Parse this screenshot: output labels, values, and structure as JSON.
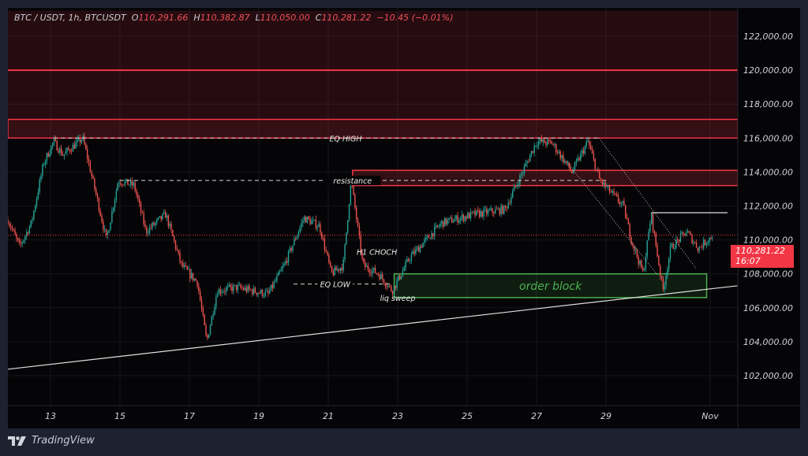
{
  "header": {
    "symbol": "BTC / USDT, 1h, BTCUSDT",
    "open_label": "O",
    "open": "110,291.66",
    "high_label": "H",
    "high": "110,382.87",
    "low_label": "L",
    "low": "110,050.00",
    "close_label": "C",
    "close": "110,281.22",
    "change": "−10.45 (−0.01%)"
  },
  "price_label": {
    "price": "110,281.22",
    "countdown": "16:07"
  },
  "footer": {
    "brand": "TradingView",
    "logo_icon": "tradingview-logo-icon"
  },
  "colors": {
    "up": "#26a69a",
    "down": "#ef5350",
    "zone_red": "#f23645",
    "order_block": "#4caf50",
    "background": "#050507"
  },
  "chart_data": {
    "type": "candlestick",
    "timeframe": "1h",
    "ylim": [
      100500,
      123500
    ],
    "yticks": [
      {
        "value": 122000,
        "label": "122,000.00"
      },
      {
        "value": 120000,
        "label": "120,000.00"
      },
      {
        "value": 118000,
        "label": "118,000.00"
      },
      {
        "value": 116000,
        "label": "116,000.00"
      },
      {
        "value": 114000,
        "label": "114,000.00"
      },
      {
        "value": 112000,
        "label": "112,000.00"
      },
      {
        "value": 110000,
        "label": "110,000.00"
      },
      {
        "value": 108000,
        "label": "108,000.00"
      },
      {
        "value": 106000,
        "label": "106,000.00"
      },
      {
        "value": 104000,
        "label": "104,000.00"
      },
      {
        "value": 102000,
        "label": "102,000.00"
      }
    ],
    "xticks": [
      {
        "day": 13,
        "label": "13"
      },
      {
        "day": 15,
        "label": "15"
      },
      {
        "day": 17,
        "label": "17"
      },
      {
        "day": 19,
        "label": "19"
      },
      {
        "day": 21,
        "label": "21"
      },
      {
        "day": 23,
        "label": "23"
      },
      {
        "day": 25,
        "label": "25"
      },
      {
        "day": 27,
        "label": "27"
      },
      {
        "day": 29,
        "label": "29"
      },
      {
        "day": 32,
        "label": "Nov"
      }
    ],
    "price_path": [
      [
        11.77,
        111200
      ],
      [
        12.11,
        109600
      ],
      [
        12.45,
        111000
      ],
      [
        12.8,
        114500
      ],
      [
        13.09,
        115800
      ],
      [
        13.36,
        115000
      ],
      [
        13.93,
        116000
      ],
      [
        14.39,
        112000
      ],
      [
        14.61,
        110000
      ],
      [
        14.95,
        113500
      ],
      [
        15.41,
        113200
      ],
      [
        15.75,
        110500
      ],
      [
        16.32,
        111500
      ],
      [
        16.77,
        108500
      ],
      [
        17.23,
        107500
      ],
      [
        17.5,
        104000
      ],
      [
        17.8,
        107000
      ],
      [
        18.36,
        107200
      ],
      [
        19.27,
        106800
      ],
      [
        19.73,
        108500
      ],
      [
        20.3,
        111300
      ],
      [
        20.75,
        110800
      ],
      [
        21.09,
        108000
      ],
      [
        21.43,
        108500
      ],
      [
        21.66,
        113500
      ],
      [
        22.0,
        108500
      ],
      [
        22.45,
        108000
      ],
      [
        22.84,
        107000
      ],
      [
        23.36,
        109000
      ],
      [
        24.27,
        111000
      ],
      [
        25.18,
        111500
      ],
      [
        26.09,
        111800
      ],
      [
        26.55,
        113800
      ],
      [
        27.0,
        115800
      ],
      [
        27.45,
        115700
      ],
      [
        28.02,
        114000
      ],
      [
        28.48,
        115800
      ],
      [
        28.82,
        113500
      ],
      [
        29.5,
        112000
      ],
      [
        29.73,
        110000
      ],
      [
        30.07,
        108000
      ],
      [
        30.3,
        111500
      ],
      [
        30.64,
        107000
      ],
      [
        30.86,
        109500
      ],
      [
        31.32,
        110500
      ],
      [
        31.66,
        109500
      ],
      [
        32.07,
        110281
      ]
    ],
    "last_price": 110281.22,
    "zones": [
      {
        "name": "supply-zone-top",
        "from_price": 117100,
        "to_price": 123500,
        "color": "#f23645"
      },
      {
        "name": "supply-zone-eq-high",
        "from_price": 116000,
        "to_price": 117100,
        "color": "#f23645"
      },
      {
        "name": "resistance-zone",
        "from_price": 113200,
        "to_price": 114100,
        "from_day": 21.7,
        "color": "#f23645"
      },
      {
        "name": "order-block",
        "from_price": 106600,
        "to_price": 108000,
        "from_day": 22.9,
        "to_day": 31.9,
        "color": "#4caf50",
        "label": "order block"
      }
    ],
    "horizontal_lines": [
      {
        "name": "level-120000",
        "price": 120000,
        "color": "#f23645"
      }
    ],
    "annotations": [
      {
        "name": "eq-high",
        "label": "EQ HIGH",
        "price": 116000,
        "from_day": 13.1,
        "to_day": 28.8,
        "style": "dashed"
      },
      {
        "name": "resistance",
        "label": "resistance",
        "price": 113500,
        "from_day": 15.0,
        "to_day": 29.0,
        "style": "dashed"
      },
      {
        "name": "eq-low",
        "label": "EQ LOW",
        "price": 107400,
        "from_day": 20.0,
        "to_day": 22.8,
        "style": "dashed"
      },
      {
        "name": "h1-choch",
        "label": "H1 CHOCH",
        "price": 109300,
        "day": 22.4
      },
      {
        "name": "liq-sweep",
        "label": "liq sweep",
        "price": 106600,
        "day": 23.0
      }
    ],
    "trendlines": [
      {
        "name": "ascending-trendline",
        "points": [
          [
            11.0,
            102200
          ],
          [
            32.8,
            107300
          ]
        ],
        "style": "solid"
      },
      {
        "name": "channel-upper",
        "points": [
          [
            28.8,
            116000
          ],
          [
            31.6,
            108300
          ]
        ],
        "style": "dotted"
      },
      {
        "name": "channel-lower",
        "points": [
          [
            27.9,
            114500
          ],
          [
            30.5,
            107900
          ]
        ],
        "style": "dotted"
      },
      {
        "name": "swing-high-line",
        "points": [
          [
            30.3,
            111600
          ],
          [
            32.5,
            111600
          ]
        ],
        "style": "solid"
      }
    ]
  }
}
